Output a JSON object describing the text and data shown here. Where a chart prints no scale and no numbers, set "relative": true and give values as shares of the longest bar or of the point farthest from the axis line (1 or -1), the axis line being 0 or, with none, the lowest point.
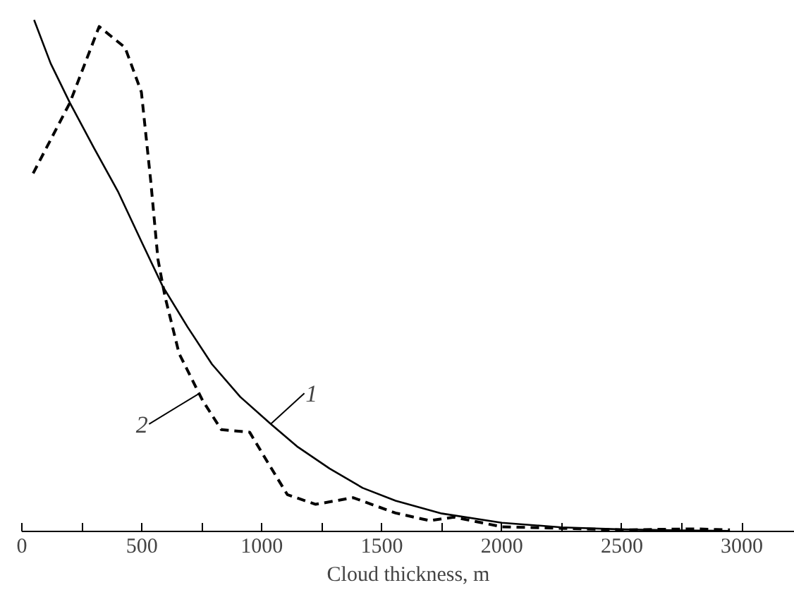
{
  "chart_data": {
    "type": "line",
    "relative": true,
    "xlabel": "Cloud thickness, m",
    "xlim": [
      0,
      3220
    ],
    "xticks": [
      0,
      {
        "value": 250,
        "label": null
      },
      500,
      {
        "value": 750,
        "label": null
      },
      1000,
      {
        "value": 1250,
        "label": null
      },
      1500,
      {
        "value": 1750,
        "label": null
      },
      2000,
      {
        "value": 2250,
        "label": null
      },
      2500,
      {
        "value": 2750,
        "label": null
      },
      3000
    ],
    "grid": false,
    "marker": "none",
    "series": [
      {
        "color": "#000000",
        "line_style": "solid",
        "x": [
          51,
          120,
          200,
          300,
          400,
          500,
          586,
          690,
          792,
          910,
          1037,
          1150,
          1282,
          1420,
          1557,
          1750,
          2000,
          2250,
          2500,
          2750,
          2950
        ],
        "values": [
          1.0,
          0.915,
          0.838,
          0.75,
          0.665,
          0.565,
          0.48,
          0.4,
          0.327,
          0.263,
          0.21,
          0.165,
          0.123,
          0.085,
          0.06,
          0.035,
          0.017,
          0.008,
          0.004,
          0.002,
          0.001
        ]
      },
      {
        "color": "#000000",
        "line_style": "dashed",
        "x": [
          47,
          200,
          322,
          430,
          498,
          537,
          567,
          596,
          655,
          753,
          831,
          949,
          1027,
          1106,
          1224,
          1380,
          1557,
          1700,
          1800,
          2000,
          2250,
          2500,
          2800,
          2950
        ],
        "values": [
          0.7,
          0.838,
          0.987,
          0.946,
          0.859,
          0.685,
          0.532,
          0.46,
          0.348,
          0.256,
          0.199,
          0.194,
          0.133,
          0.072,
          0.053,
          0.066,
          0.036,
          0.021,
          0.028,
          0.009,
          0.006,
          0.003,
          0.005,
          0.003
        ]
      }
    ],
    "annotations": [
      {
        "text": "1",
        "x": 1037,
        "y": 0.21
      },
      {
        "text": "2",
        "x": 740,
        "y": 0.27
      }
    ]
  }
}
